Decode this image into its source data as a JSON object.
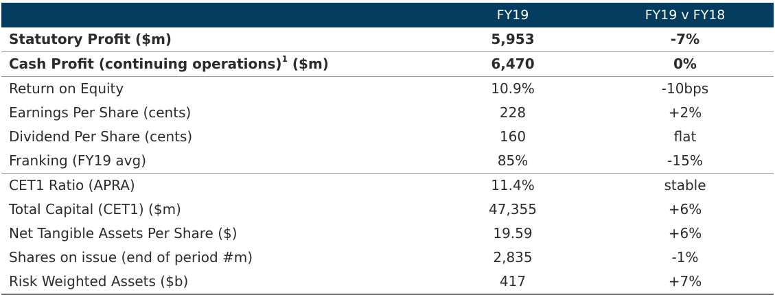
{
  "header": {
    "col_label": "",
    "col_fy19": "FY19",
    "col_change": "FY19 v FY18"
  },
  "rows": [
    {
      "label": "Statutory Profit ($m)",
      "value": "5,953",
      "change": "-7%",
      "bold": true
    },
    {
      "label": "Cash Profit (continuing operations)",
      "sup": "1",
      "label_suffix": " ($m)",
      "value": "6,470",
      "change": "0%",
      "bold": true
    },
    {
      "label": "Return on Equity",
      "value": "10.9%",
      "change": "-10bps"
    },
    {
      "label": "Earnings Per Share (cents)",
      "value": "228",
      "change": "+2%"
    },
    {
      "label": "Dividend Per Share (cents)",
      "value": "160",
      "change": "flat"
    },
    {
      "label": "Franking (FY19 avg)",
      "value": "85%",
      "change": "-15%"
    },
    {
      "label": "CET1 Ratio (APRA)",
      "value": "11.4%",
      "change": "stable"
    },
    {
      "label": "Total Capital (CET1) ($m)",
      "value": "47,355",
      "change": "+6%"
    },
    {
      "label": "Net Tangible Assets Per Share ($)",
      "value": "19.59",
      "change": "+6%"
    },
    {
      "label": "Shares on issue (end of period #m)",
      "value": "2,835",
      "change": "-1%"
    },
    {
      "label": "Risk Weighted Assets ($b)",
      "value": "417",
      "change": "+7%"
    }
  ],
  "colors": {
    "header_bg": "#033c5e",
    "text": "#2b2b2b"
  }
}
